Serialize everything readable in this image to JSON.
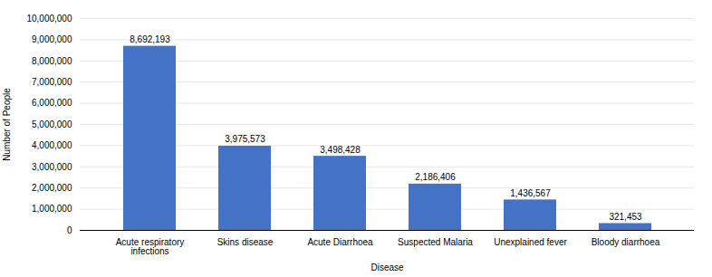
{
  "chart_data": {
    "type": "bar",
    "categories": [
      "Acute respiratory\ninfections",
      "Skins disease",
      "Acute Diarrhoea",
      "Suspected Malaria",
      "Unexplained fever",
      "Bloody diarrhoea"
    ],
    "values": [
      8692193,
      3975573,
      3498428,
      2186406,
      1436567,
      321453
    ],
    "value_labels": [
      "8,692,193",
      "3,975,573",
      "3,498,428",
      "2,186,406",
      "1,436,567",
      "321,453"
    ],
    "data_labels": true,
    "color": "#4472C4",
    "xlabel": "Disease",
    "ylabel": "Number of People",
    "ylim": [
      0,
      10000000
    ],
    "yticks": [
      0,
      {
        "value": 1000000,
        "label": "1,000,000"
      },
      {
        "value": 2000000,
        "label": "2,000,000"
      },
      {
        "value": 3000000,
        "label": "3,000,000"
      },
      {
        "value": 4000000,
        "label": "4,000,000"
      },
      {
        "value": 5000000,
        "label": "5,000,000"
      },
      {
        "value": 6000000,
        "label": "6,000,000"
      },
      {
        "value": 7000000,
        "label": "7,000,000"
      },
      {
        "value": 8000000,
        "label": "8,000,000"
      },
      {
        "value": 9000000,
        "label": "9,000,000"
      },
      {
        "value": 10000000,
        "label": "10,000,000"
      }
    ],
    "grid": true
  }
}
